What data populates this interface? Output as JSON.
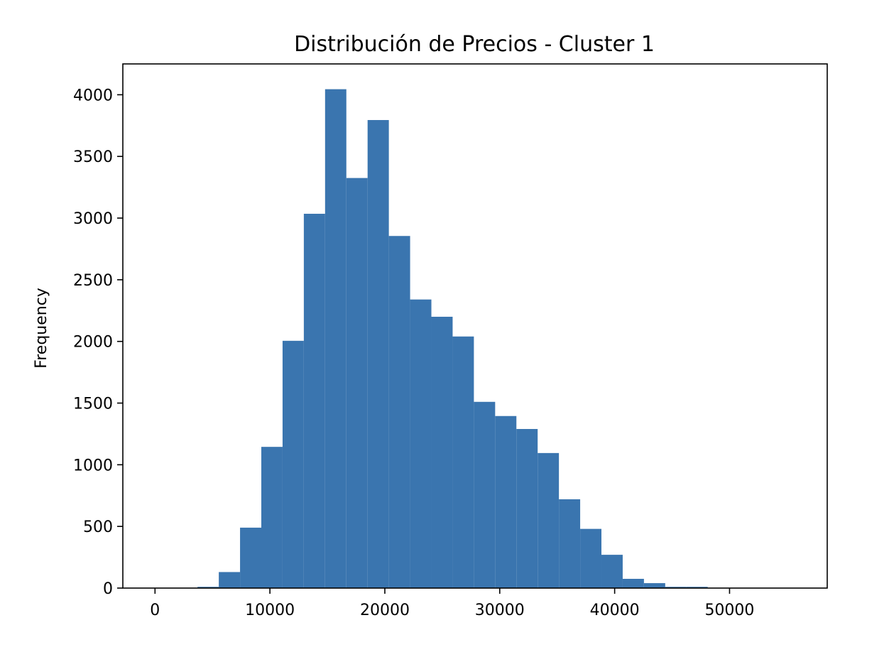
{
  "chart_data": {
    "type": "bar",
    "title": "Distribución de Precios - Cluster 1",
    "xlabel": "",
    "ylabel": "Frequency",
    "bar_color": "#3a75af",
    "grid": false,
    "xlim": [
      -2800,
      58500
    ],
    "ylim": [
      0,
      4250
    ],
    "x_ticks": [
      0,
      10000,
      20000,
      30000,
      40000,
      50000
    ],
    "y_ticks": [
      0,
      500,
      1000,
      1500,
      2000,
      2500,
      3000,
      3500,
      4000
    ],
    "bin_edges": [
      0,
      1850,
      3700,
      5550,
      7400,
      9250,
      11100,
      12950,
      14800,
      16650,
      18500,
      20350,
      22200,
      24050,
      25900,
      27750,
      29600,
      31450,
      33300,
      35150,
      37000,
      38850,
      40700,
      42550,
      44400,
      46250,
      48100,
      49950,
      51800,
      53650,
      55500
    ],
    "counts": [
      0,
      0,
      10,
      130,
      490,
      1145,
      2005,
      3035,
      4045,
      3325,
      3795,
      2855,
      2340,
      2200,
      2040,
      1510,
      1395,
      1290,
      1095,
      720,
      480,
      270,
      75,
      40,
      10,
      10,
      0,
      0,
      0,
      0
    ]
  }
}
